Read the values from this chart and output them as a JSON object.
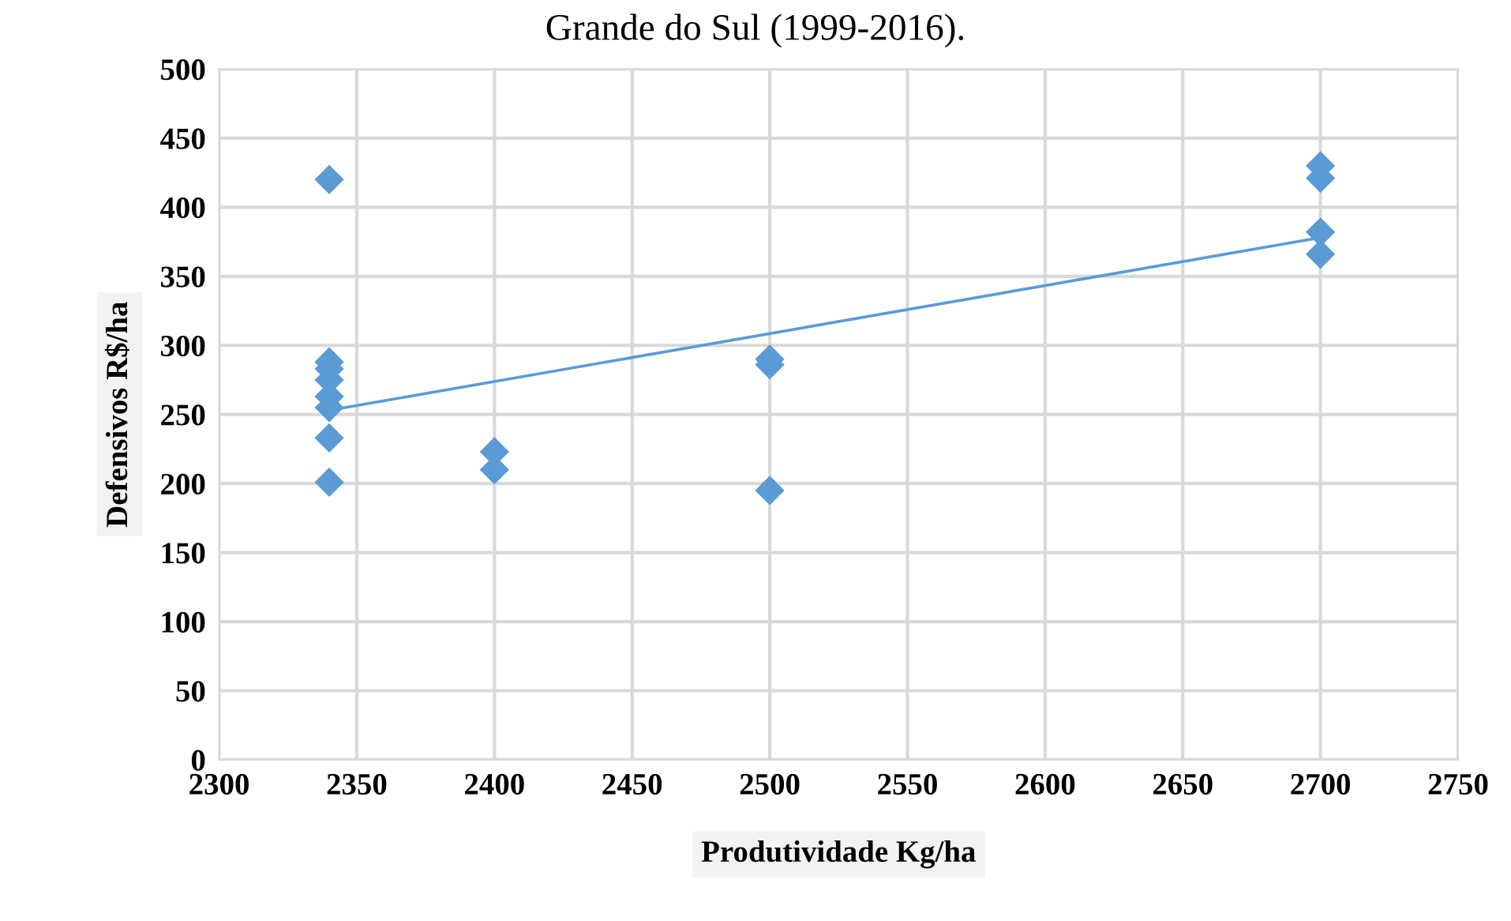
{
  "chart_data": {
    "type": "scatter",
    "title": "Grande do Sul (1999-2016).",
    "xlabel": "Produtividade Kg/ha",
    "ylabel": "Defensivos R$/ha",
    "series": [
      {
        "color": "#5b9bd5",
        "marker": "diamond",
        "x": [
          2340,
          2340,
          2340,
          2340,
          2340,
          2340,
          2340,
          2340,
          2400,
          2400,
          2500,
          2500,
          2500,
          2700,
          2700,
          2700,
          2700
        ],
        "values": [
          420,
          288,
          283,
          275,
          263,
          255,
          233,
          201,
          223,
          210,
          290,
          286,
          195,
          430,
          421,
          382,
          366
        ]
      },
      {
        "type": "line",
        "color": "#5b9bd5",
        "marker": "none",
        "x": [
          2340,
          2700
        ],
        "values": [
          253,
          378
        ]
      }
    ],
    "xlim": [
      2300,
      2750
    ],
    "xticks": [
      2300,
      2350,
      2400,
      2450,
      2500,
      2550,
      2600,
      2650,
      2700,
      2750
    ],
    "ylim": [
      0,
      500
    ],
    "yticks": [
      0,
      50,
      100,
      150,
      200,
      250,
      300,
      350,
      400,
      450,
      500
    ],
    "grid": true
  }
}
